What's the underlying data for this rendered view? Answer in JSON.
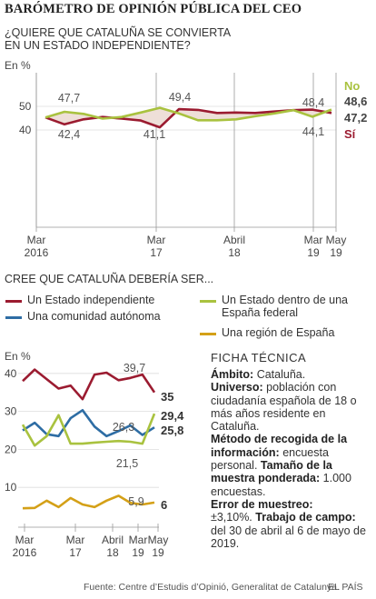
{
  "header": {
    "title": "BARÓMETRO DE OPINIÓN PÚBLICA DEL CEO",
    "question_line1": "¿QUIERE QUE CATALUÑA SE CONVIERTA",
    "question_line2": "EN UN ESTADO INDEPENDIENTE?",
    "unit": "En %"
  },
  "colors": {
    "red": "#9b1b30",
    "green": "#a9c23f",
    "blue": "#2e6da4",
    "gold": "#d4a017",
    "fill": "#eedfd8"
  },
  "section2": {
    "title": "CREE QUE CATALUÑA DEBERÍA SER...",
    "legend": {
      "independent": "Un Estado independiente",
      "autonomous": "Una comunidad autónoma",
      "federal_line1": "Un Estado dentro de una",
      "federal_line2": "España federal",
      "region": "Una región de España"
    },
    "unit": "En %"
  },
  "chart_data": [
    {
      "type": "line",
      "title": "¿QUIERE QUE CATALUÑA SE CONVIERTA EN UN ESTADO INDEPENDIENTE?",
      "ylabel": "En %",
      "ylim": [
        40,
        52
      ],
      "yticks": [
        50,
        40
      ],
      "xticks": [
        {
          "label1": "Mar",
          "label2": "2016"
        },
        {
          "label1": "Mar",
          "label2": "17"
        },
        {
          "label1": "Abril",
          "label2": "18"
        },
        {
          "label1": "Mar",
          "label2": "19"
        },
        {
          "label1": "May",
          "label2": "19"
        }
      ],
      "series": [
        {
          "name": "No",
          "values": [
            45.3,
            47.7,
            46.8,
            44.8,
            45.5,
            47.4,
            49.4,
            47.0,
            44.1,
            44.1,
            44.5,
            45.8,
            47.0,
            48.4,
            45.6,
            48.6
          ]
        },
        {
          "name": "Sí",
          "values": [
            45.3,
            42.4,
            44.5,
            45.5,
            44.8,
            44.0,
            41.1,
            48.8,
            48.5,
            47.2,
            47.4,
            47.2,
            47.8,
            48.4,
            48.6,
            47.2
          ]
        }
      ],
      "annotations": [
        "47,7",
        "42,4",
        "49,4",
        "41,1",
        "48,4",
        "44,1"
      ],
      "end_labels": {
        "no_label": "No",
        "no_value": "48,6",
        "si_value": "47,2",
        "si_label": "Sí"
      }
    },
    {
      "type": "line",
      "ylabel": "En %",
      "ylim": [
        0,
        42
      ],
      "yticks": [
        40,
        30,
        20,
        10
      ],
      "xticks": [
        {
          "label1": "Mar",
          "label2": "2016"
        },
        {
          "label1": "Mar",
          "label2": "17"
        },
        {
          "label1": "Abril",
          "label2": "18"
        },
        {
          "label1": "Mar",
          "label2": "19"
        },
        {
          "label1": "May",
          "label2": "19"
        }
      ],
      "series": [
        {
          "name": "Un Estado independiente",
          "values": [
            38.0,
            41.0,
            38.5,
            36.0,
            36.8,
            33.2,
            39.7,
            40.2,
            38.2,
            38.8,
            39.7,
            35.0
          ]
        },
        {
          "name": "Una comunidad autónoma",
          "values": [
            25.0,
            27.0,
            24.0,
            23.5,
            28.2,
            30.3,
            26.0,
            23.5,
            24.8,
            26.3,
            23.8,
            25.8
          ]
        },
        {
          "name": "Un Estado dentro de una España federal",
          "values": [
            26.5,
            21.0,
            23.5,
            29.0,
            21.5,
            21.5,
            21.8,
            22.0,
            22.2,
            22.0,
            21.5,
            29.4
          ]
        },
        {
          "name": "Una región de España",
          "values": [
            4.5,
            4.6,
            6.5,
            4.8,
            7.2,
            5.5,
            4.8,
            6.5,
            7.8,
            5.9,
            5.5,
            6.0
          ]
        }
      ],
      "annotations": [
        "39,7",
        "26,3",
        "21,5",
        "5,9"
      ],
      "end_labels": [
        "35",
        "29,4",
        "25,8",
        "6"
      ]
    }
  ],
  "ficha": {
    "title": "FICHA TÉCNICA",
    "ambito_label": "Ámbito:",
    "ambito_text": "Cataluña.",
    "universo_label": "Universo:",
    "universo_text": "población con ciudadanía española de 18 o más años residente en Cataluña.",
    "metodo_label": "Método de recogida de la información:",
    "metodo_text": "encuesta personal.",
    "tamano_label": "Tamaño de la muestra ponderada:",
    "tamano_text": "1.000 encuestas.",
    "error_label": "Error de muestreo:",
    "error_text": "±3,10%.",
    "campo_label": "Trabajo de campo:",
    "campo_text": "del 30 de abril al 6 de mayo de 2019."
  },
  "footer": {
    "source": "Fuente: Centre d’Estudis d’Opinió, Generalitat de Catalunya.",
    "brand": "EL PAÍS"
  }
}
